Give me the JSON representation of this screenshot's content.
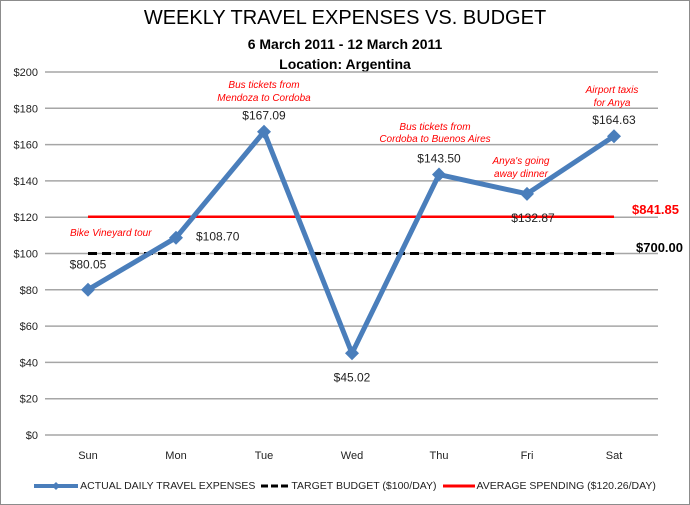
{
  "chart_data": {
    "type": "line",
    "title": "WEEKLY TRAVEL EXPENSES VS. BUDGET",
    "subtitle": "6 March 2011 - 12 March 2011",
    "subtitle2": "Location: Argentina",
    "xlabel": "",
    "ylabel": "",
    "ylim": [
      0,
      200
    ],
    "y_ticks": [
      "$0",
      "$20",
      "$40",
      "$60",
      "$80",
      "$100",
      "$120",
      "$140",
      "$160",
      "$180",
      "$200"
    ],
    "grid": true,
    "legend_position": "bottom",
    "categories": [
      "Sun",
      "Mon",
      "Tue",
      "Wed",
      "Thu",
      "Fri",
      "Sat"
    ],
    "series": [
      {
        "name": "ACTUAL DAILY TRAVEL EXPENSES",
        "color": "#4a7ebb",
        "style": "solid-with-diamond-markers",
        "values": [
          80.05,
          108.7,
          167.09,
          45.02,
          143.5,
          132.87,
          164.63
        ],
        "labels": [
          "$80.05",
          "$108.70",
          "$167.09",
          "$45.02",
          "$143.50",
          "$132.87",
          "$164.63"
        ]
      },
      {
        "name": "TARGET BUDGET ($100/DAY)",
        "color": "#000000",
        "style": "dashed",
        "values": [
          100,
          100,
          100,
          100,
          100,
          100,
          100
        ],
        "end_label": "$700.00"
      },
      {
        "name": "AVERAGE SPENDING ($120.26/DAY)",
        "color": "#ff0000",
        "style": "solid",
        "values": [
          120.26,
          120.26,
          120.26,
          120.26,
          120.26,
          120.26,
          120.26
        ],
        "end_label": "$841.85"
      }
    ],
    "annotations": [
      {
        "text": "Bike Vineyard tour",
        "day": "Mon"
      },
      {
        "text": "Bus tickets from Mendoza to Cordoba",
        "day": "Tue"
      },
      {
        "text": "Bus tickets from Cordoba to Buenos Aires",
        "day": "Thu"
      },
      {
        "text": "Anya's going away dinner",
        "day": "Fri"
      },
      {
        "text": "Airport taxis for Anya",
        "day": "Sat"
      }
    ]
  },
  "header": {
    "title": "WEEKLY TRAVEL EXPENSES VS. BUDGET",
    "dates": "6 March 2011 - 12 March 2011",
    "location": "Location: Argentina"
  },
  "notes": {
    "mon_line1": "Bike Vineyard tour",
    "tue_line1": "Bus tickets from",
    "tue_line2": "Mendoza to Cordoba",
    "thu_line1": "Bus tickets from",
    "thu_line2": "Cordoba to Buenos Aires",
    "fri_line1": "Anya's going",
    "fri_line2": "away dinner",
    "sat_line1": "Airport taxis",
    "sat_line2": "for Anya"
  },
  "totals": {
    "average_total": "$841.85",
    "budget_total": "$700.00"
  },
  "legend": {
    "actual": "ACTUAL DAILY TRAVEL EXPENSES",
    "budget": "TARGET BUDGET ($100/DAY)",
    "average": "AVERAGE SPENDING ($120.26/DAY)"
  },
  "colors": {
    "actual": "#4a7ebb",
    "budget": "#000000",
    "average": "#ff0000",
    "annotation": "#ff0000",
    "grid": "#a6a6a6"
  }
}
